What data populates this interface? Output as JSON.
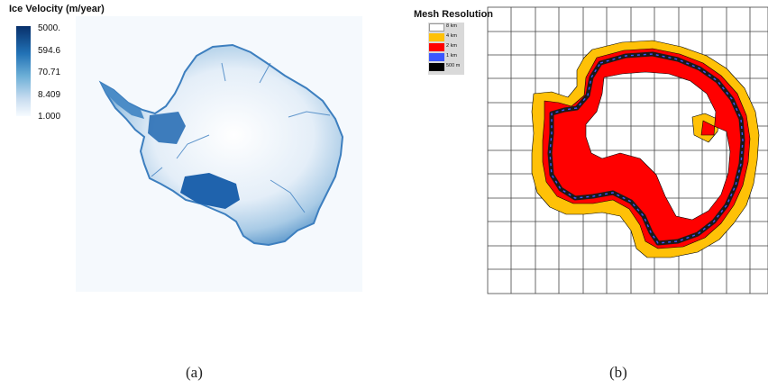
{
  "panel_a": {
    "colorbar": {
      "title": "Ice Velocity (m/year)",
      "ticks": [
        "5000.",
        "594.6",
        "70.71",
        "8.409",
        "1.000"
      ],
      "color_top": "#08306b",
      "color_bottom": "#f7fbff"
    },
    "caption": "(a)"
  },
  "panel_b": {
    "legend": {
      "title": "Mesh Resolution",
      "items": [
        {
          "label": "8 km",
          "color": "#ffffff"
        },
        {
          "label": "4 km",
          "color": "#ffc107"
        },
        {
          "label": "2 km",
          "color": "#ff0000"
        },
        {
          "label": "1 km",
          "color": "#3b57ff"
        },
        {
          "label": "500 m",
          "color": "#000000"
        }
      ]
    },
    "caption": "(b)"
  }
}
